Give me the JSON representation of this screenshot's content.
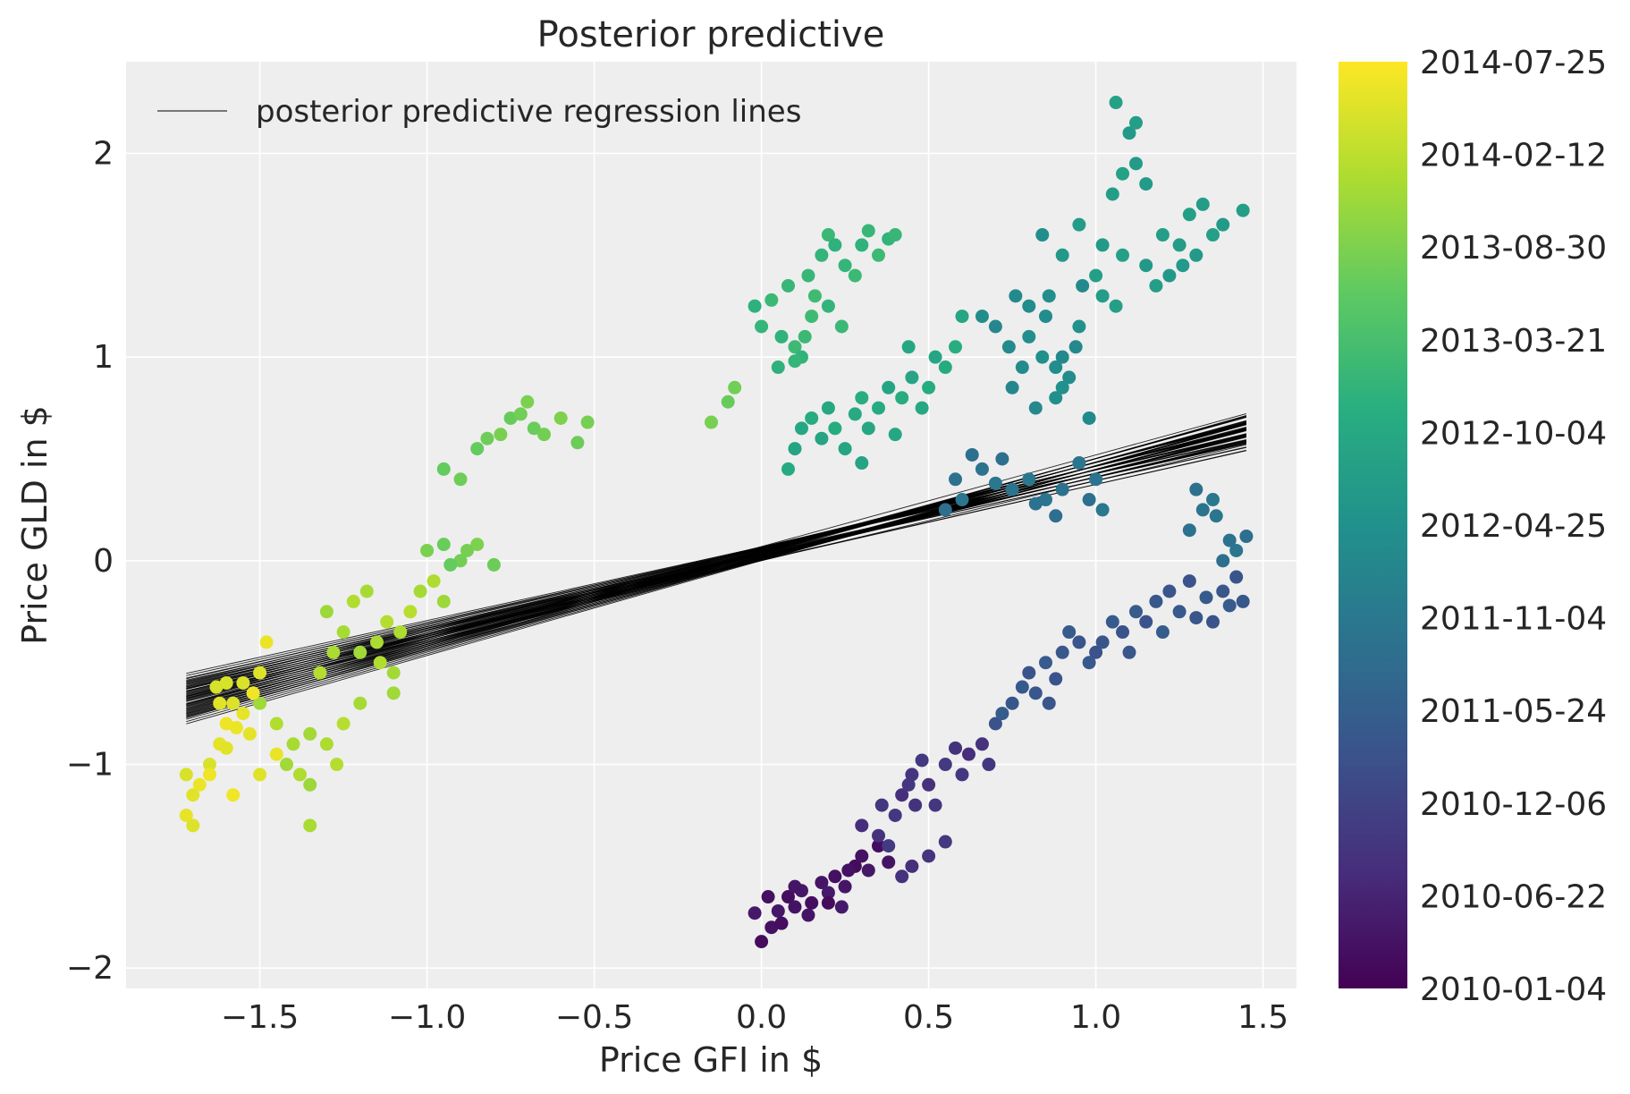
{
  "chart_data": {
    "type": "scatter",
    "title": "Posterior predictive",
    "xlabel": "Price GFI in $",
    "ylabel": "Price GLD in $",
    "xlim": [
      -1.9,
      1.6
    ],
    "ylim": [
      -2.1,
      2.45
    ],
    "grid": true,
    "xticks": [
      -1.5,
      -1.0,
      -0.5,
      0.0,
      0.5,
      1.0,
      1.5
    ],
    "xtick_labels": [
      "−1.5",
      "−1.0",
      "−0.5",
      "0.0",
      "0.5",
      "1.0",
      "1.5"
    ],
    "yticks": [
      2,
      1,
      0,
      -1,
      -2
    ],
    "ytick_labels": [
      "2",
      "1",
      "0",
      "−1",
      "−2"
    ],
    "legend": {
      "label": "posterior predictive regression lines",
      "placement": "top-left",
      "color": "#000000"
    },
    "colorbar": {
      "colormap": "viridis",
      "tick_labels": [
        "2014-07-25",
        "2014-02-12",
        "2013-08-30",
        "2013-03-21",
        "2012-10-04",
        "2012-04-25",
        "2011-11-04",
        "2011-05-24",
        "2010-12-06",
        "2010-06-22",
        "2010-01-04"
      ]
    },
    "regression": {
      "x_range": [
        -1.72,
        1.45
      ],
      "intercept_range": [
        0.0,
        0.07
      ],
      "slope_range": [
        0.36,
        0.47
      ],
      "line_count": 60
    },
    "series": [
      {
        "segment": "2010-01 to 2010-06",
        "color_position": 0.05,
        "points": [
          [
            0.0,
            -1.87
          ],
          [
            0.03,
            -1.8
          ],
          [
            0.05,
            -1.72
          ],
          [
            0.08,
            -1.65
          ],
          [
            0.1,
            -1.7
          ],
          [
            0.12,
            -1.62
          ],
          [
            0.15,
            -1.68
          ],
          [
            0.18,
            -1.58
          ],
          [
            0.2,
            -1.63
          ],
          [
            0.22,
            -1.55
          ],
          [
            0.25,
            -1.6
          ],
          [
            0.28,
            -1.5
          ],
          [
            0.3,
            -1.45
          ],
          [
            0.32,
            -1.52
          ],
          [
            0.35,
            -1.4
          ],
          [
            0.38,
            -1.48
          ],
          [
            -0.02,
            -1.73
          ],
          [
            0.06,
            -1.78
          ],
          [
            0.14,
            -1.74
          ],
          [
            0.24,
            -1.7
          ],
          [
            0.02,
            -1.65
          ],
          [
            0.1,
            -1.6
          ],
          [
            0.2,
            -1.68
          ],
          [
            0.26,
            -1.52
          ]
        ]
      },
      {
        "segment": "2010-06 to 2010-12",
        "color_position": 0.15,
        "points": [
          [
            0.3,
            -1.3
          ],
          [
            0.35,
            -1.35
          ],
          [
            0.4,
            -1.25
          ],
          [
            0.42,
            -1.15
          ],
          [
            0.45,
            -1.05
          ],
          [
            0.48,
            -0.98
          ],
          [
            0.5,
            -1.1
          ],
          [
            0.52,
            -1.2
          ],
          [
            0.55,
            -1.0
          ],
          [
            0.58,
            -0.92
          ],
          [
            0.6,
            -1.05
          ],
          [
            0.62,
            -0.95
          ],
          [
            0.66,
            -0.9
          ],
          [
            0.68,
            -1.0
          ],
          [
            0.45,
            -1.5
          ],
          [
            0.5,
            -1.45
          ],
          [
            0.55,
            -1.38
          ],
          [
            0.42,
            -1.55
          ],
          [
            0.36,
            -1.2
          ],
          [
            0.38,
            -1.4
          ],
          [
            0.46,
            -1.2
          ],
          [
            0.44,
            -1.1
          ]
        ]
      },
      {
        "segment": "2010-12 to 2011-05",
        "color_position": 0.27,
        "points": [
          [
            0.7,
            -0.8
          ],
          [
            0.75,
            -0.7
          ],
          [
            0.78,
            -0.62
          ],
          [
            0.8,
            -0.55
          ],
          [
            0.82,
            -0.65
          ],
          [
            0.85,
            -0.5
          ],
          [
            0.88,
            -0.58
          ],
          [
            0.9,
            -0.45
          ],
          [
            0.92,
            -0.35
          ],
          [
            0.95,
            -0.4
          ],
          [
            0.98,
            -0.5
          ],
          [
            1.0,
            -0.45
          ],
          [
            1.02,
            -0.4
          ],
          [
            1.05,
            -0.3
          ],
          [
            1.08,
            -0.35
          ],
          [
            1.1,
            -0.45
          ],
          [
            1.12,
            -0.25
          ],
          [
            1.15,
            -0.3
          ],
          [
            1.18,
            -0.2
          ],
          [
            1.2,
            -0.35
          ],
          [
            1.22,
            -0.15
          ],
          [
            1.25,
            -0.25
          ],
          [
            1.28,
            -0.1
          ],
          [
            1.3,
            -0.28
          ],
          [
            1.33,
            -0.18
          ],
          [
            1.35,
            -0.3
          ],
          [
            1.38,
            -0.15
          ],
          [
            1.4,
            -0.22
          ],
          [
            1.42,
            -0.08
          ],
          [
            1.44,
            -0.2
          ],
          [
            0.72,
            -0.75
          ],
          [
            0.86,
            -0.7
          ]
        ]
      },
      {
        "segment": "2011-05 to 2011-11",
        "color_position": 0.38,
        "points": [
          [
            0.55,
            0.25
          ],
          [
            0.58,
            0.4
          ],
          [
            0.6,
            0.3
          ],
          [
            0.63,
            0.52
          ],
          [
            0.66,
            0.45
          ],
          [
            0.7,
            0.38
          ],
          [
            0.72,
            0.5
          ],
          [
            0.75,
            0.35
          ],
          [
            0.8,
            0.4
          ],
          [
            0.82,
            0.28
          ],
          [
            0.85,
            0.3
          ],
          [
            0.88,
            0.22
          ],
          [
            0.9,
            0.35
          ],
          [
            0.95,
            0.48
          ],
          [
            0.98,
            0.3
          ],
          [
            1.0,
            0.4
          ],
          [
            1.02,
            0.25
          ],
          [
            1.3,
            0.35
          ],
          [
            1.32,
            0.25
          ],
          [
            1.35,
            0.3
          ],
          [
            1.4,
            0.1
          ],
          [
            1.42,
            0.05
          ],
          [
            1.45,
            0.12
          ],
          [
            1.28,
            0.15
          ],
          [
            1.36,
            0.22
          ],
          [
            1.38,
            0.0
          ]
        ]
      },
      {
        "segment": "2011-11 to 2012-04",
        "color_position": 0.48,
        "points": [
          [
            0.75,
            0.85
          ],
          [
            0.78,
            0.95
          ],
          [
            0.8,
            1.1
          ],
          [
            0.82,
            0.75
          ],
          [
            0.85,
            1.2
          ],
          [
            0.88,
            0.8
          ],
          [
            0.9,
            1.0
          ],
          [
            0.92,
            0.9
          ],
          [
            0.95,
            1.15
          ],
          [
            0.98,
            0.7
          ],
          [
            0.66,
            1.2
          ],
          [
            0.7,
            1.15
          ],
          [
            0.74,
            1.05
          ],
          [
            0.86,
            1.3
          ],
          [
            0.94,
            1.05
          ],
          [
            0.8,
            1.25
          ],
          [
            0.84,
            1.0
          ],
          [
            0.96,
            1.35
          ],
          [
            0.88,
            0.95
          ],
          [
            0.9,
            0.85
          ],
          [
            0.76,
            1.3
          ],
          [
            0.84,
            1.6
          ]
        ]
      },
      {
        "segment": "2012-04 to 2012-10",
        "color_position": 0.55,
        "points": [
          [
            0.9,
            1.5
          ],
          [
            0.95,
            1.65
          ],
          [
            1.0,
            1.4
          ],
          [
            1.02,
            1.55
          ],
          [
            1.05,
            1.8
          ],
          [
            1.08,
            1.5
          ],
          [
            1.1,
            2.1
          ],
          [
            1.12,
            2.15
          ],
          [
            1.06,
            2.25
          ],
          [
            1.15,
            1.85
          ],
          [
            1.2,
            1.6
          ],
          [
            1.22,
            1.4
          ],
          [
            1.25,
            1.55
          ],
          [
            1.28,
            1.7
          ],
          [
            1.3,
            1.5
          ],
          [
            1.32,
            1.75
          ],
          [
            1.35,
            1.6
          ],
          [
            1.38,
            1.65
          ],
          [
            1.44,
            1.72
          ],
          [
            1.08,
            1.9
          ],
          [
            1.12,
            1.95
          ],
          [
            1.18,
            1.35
          ],
          [
            1.15,
            1.45
          ],
          [
            1.02,
            1.3
          ],
          [
            1.06,
            1.25
          ],
          [
            1.26,
            1.45
          ]
        ]
      },
      {
        "segment": "2012-10 to 2013-03",
        "color_position": 0.66,
        "points": [
          [
            -0.02,
            1.25
          ],
          [
            0.0,
            1.15
          ],
          [
            0.03,
            1.28
          ],
          [
            0.06,
            1.1
          ],
          [
            0.08,
            1.35
          ],
          [
            0.1,
            1.05
          ],
          [
            0.12,
            1.0
          ],
          [
            0.14,
            1.4
          ],
          [
            0.16,
            1.3
          ],
          [
            0.18,
            1.5
          ],
          [
            0.2,
            1.6
          ],
          [
            0.22,
            1.55
          ],
          [
            0.25,
            1.45
          ],
          [
            0.28,
            1.4
          ],
          [
            0.3,
            1.55
          ],
          [
            0.32,
            1.62
          ],
          [
            0.35,
            1.5
          ],
          [
            0.38,
            1.58
          ],
          [
            0.4,
            1.6
          ],
          [
            0.15,
            1.2
          ],
          [
            0.2,
            1.25
          ],
          [
            0.24,
            1.15
          ],
          [
            0.05,
            0.95
          ],
          [
            0.1,
            0.98
          ],
          [
            0.13,
            1.1
          ]
        ]
      },
      {
        "segment": "2012-10 to 2013-03 (lower)",
        "color_position": 0.6,
        "points": [
          [
            0.1,
            0.55
          ],
          [
            0.12,
            0.65
          ],
          [
            0.15,
            0.7
          ],
          [
            0.18,
            0.6
          ],
          [
            0.2,
            0.75
          ],
          [
            0.22,
            0.65
          ],
          [
            0.25,
            0.55
          ],
          [
            0.28,
            0.72
          ],
          [
            0.3,
            0.8
          ],
          [
            0.32,
            0.65
          ],
          [
            0.35,
            0.75
          ],
          [
            0.38,
            0.85
          ],
          [
            0.4,
            0.62
          ],
          [
            0.42,
            0.8
          ],
          [
            0.45,
            0.9
          ],
          [
            0.48,
            0.75
          ],
          [
            0.5,
            0.85
          ],
          [
            0.52,
            1.0
          ],
          [
            0.55,
            0.95
          ],
          [
            0.58,
            1.05
          ],
          [
            0.6,
            1.2
          ],
          [
            0.08,
            0.45
          ],
          [
            0.3,
            0.48
          ],
          [
            0.44,
            1.05
          ]
        ]
      },
      {
        "segment": "2013-03 to 2013-08",
        "color_position": 0.78,
        "points": [
          [
            -0.85,
            0.55
          ],
          [
            -0.82,
            0.6
          ],
          [
            -0.78,
            0.62
          ],
          [
            -0.75,
            0.7
          ],
          [
            -0.72,
            0.72
          ],
          [
            -0.7,
            0.78
          ],
          [
            -0.68,
            0.65
          ],
          [
            -0.65,
            0.62
          ],
          [
            -0.6,
            0.7
          ],
          [
            -0.55,
            0.58
          ],
          [
            -0.52,
            0.68
          ],
          [
            -0.95,
            0.45
          ],
          [
            -0.9,
            0.4
          ],
          [
            -0.15,
            0.68
          ],
          [
            -0.1,
            0.78
          ],
          [
            -0.08,
            0.85
          ],
          [
            -1.0,
            0.05
          ],
          [
            -0.95,
            0.08
          ],
          [
            -0.9,
            0.0
          ],
          [
            -0.85,
            0.08
          ],
          [
            -0.8,
            -0.02
          ],
          [
            -0.88,
            0.05
          ],
          [
            -0.93,
            -0.02
          ]
        ]
      },
      {
        "segment": "2013-08 to 2014-02",
        "color_position": 0.87,
        "points": [
          [
            -1.3,
            -0.25
          ],
          [
            -1.25,
            -0.35
          ],
          [
            -1.22,
            -0.2
          ],
          [
            -1.2,
            -0.45
          ],
          [
            -1.15,
            -0.4
          ],
          [
            -1.12,
            -0.3
          ],
          [
            -1.1,
            -0.55
          ],
          [
            -1.08,
            -0.35
          ],
          [
            -1.05,
            -0.25
          ],
          [
            -1.02,
            -0.15
          ],
          [
            -0.98,
            -0.1
          ],
          [
            -0.95,
            -0.2
          ],
          [
            -1.18,
            -0.15
          ],
          [
            -1.14,
            -0.5
          ],
          [
            -1.1,
            -0.65
          ],
          [
            -1.28,
            -0.45
          ],
          [
            -1.32,
            -0.55
          ],
          [
            -1.35,
            -0.85
          ],
          [
            -1.3,
            -0.9
          ],
          [
            -1.25,
            -0.8
          ],
          [
            -1.2,
            -0.7
          ],
          [
            -1.38,
            -1.05
          ],
          [
            -1.35,
            -1.1
          ],
          [
            -1.4,
            -0.9
          ],
          [
            -1.45,
            -0.8
          ],
          [
            -1.5,
            -0.7
          ],
          [
            -1.35,
            -1.3
          ],
          [
            -1.27,
            -1.0
          ],
          [
            -1.42,
            -1.0
          ]
        ]
      },
      {
        "segment": "2014-02 to 2014-07",
        "color_position": 0.96,
        "points": [
          [
            -1.72,
            -1.05
          ],
          [
            -1.7,
            -1.15
          ],
          [
            -1.68,
            -1.1
          ],
          [
            -1.65,
            -1.0
          ],
          [
            -1.62,
            -0.9
          ],
          [
            -1.6,
            -0.8
          ],
          [
            -1.58,
            -0.7
          ],
          [
            -1.55,
            -0.75
          ],
          [
            -1.52,
            -0.65
          ],
          [
            -1.5,
            -0.55
          ],
          [
            -1.48,
            -0.4
          ],
          [
            -1.6,
            -0.6
          ],
          [
            -1.62,
            -0.7
          ],
          [
            -1.57,
            -0.82
          ],
          [
            -1.55,
            -0.6
          ],
          [
            -1.53,
            -0.85
          ],
          [
            -1.65,
            -1.05
          ],
          [
            -1.7,
            -1.3
          ],
          [
            -1.72,
            -1.25
          ],
          [
            -1.58,
            -1.15
          ],
          [
            -1.5,
            -1.05
          ],
          [
            -1.45,
            -0.95
          ],
          [
            -1.63,
            -0.62
          ],
          [
            -1.6,
            -0.92
          ]
        ]
      }
    ]
  }
}
